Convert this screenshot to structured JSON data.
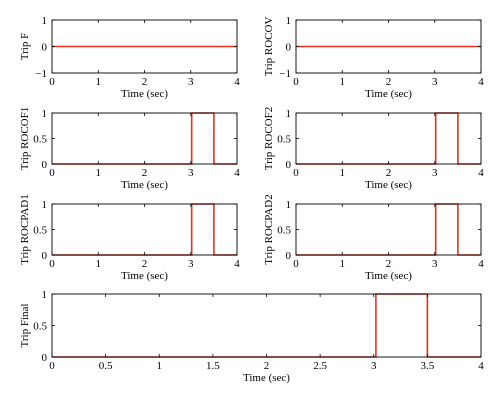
{
  "figure": {
    "background": "#ffffff",
    "line_color": "#e8321e",
    "axis_color": "#000000"
  },
  "chart_data": [
    {
      "type": "line",
      "ylabel": "Trip F",
      "xlabel": "Time (sec)",
      "xlim": [
        0,
        4
      ],
      "ylim": [
        -1,
        1
      ],
      "xticks": [
        "0",
        "1",
        "2",
        "3",
        "4"
      ],
      "yticks": [
        "−1",
        "0",
        "1"
      ],
      "series": [
        {
          "x": [
            0,
            4
          ],
          "y": [
            0,
            0
          ]
        }
      ]
    },
    {
      "type": "line",
      "ylabel": "Trip ROCOV",
      "xlabel": "Time (sec)",
      "xlim": [
        0,
        4
      ],
      "ylim": [
        -1,
        1
      ],
      "xticks": [
        "0",
        "1",
        "2",
        "3",
        "4"
      ],
      "yticks": [
        "−1",
        "0",
        "1"
      ],
      "series": [
        {
          "x": [
            0,
            4
          ],
          "y": [
            0,
            0
          ]
        }
      ]
    },
    {
      "type": "line",
      "ylabel": "Trip ROCOF1",
      "xlabel": "Time (sec)",
      "xlim": [
        0,
        4
      ],
      "ylim": [
        0,
        1
      ],
      "xticks": [
        "0",
        "1",
        "2",
        "3",
        "4"
      ],
      "yticks": [
        "0",
        "0.5",
        "1"
      ],
      "series": [
        {
          "x": [
            0,
            3.02,
            3.02,
            3.5,
            3.5,
            4
          ],
          "y": [
            0,
            0,
            1,
            1,
            0,
            0
          ]
        }
      ]
    },
    {
      "type": "line",
      "ylabel": "Trip ROCOF2",
      "xlabel": "Time (sec)",
      "xlim": [
        0,
        4
      ],
      "ylim": [
        0,
        1
      ],
      "xticks": [
        "0",
        "1",
        "2",
        "3",
        "4"
      ],
      "yticks": [
        "0",
        "0.5",
        "1"
      ],
      "series": [
        {
          "x": [
            0,
            3.02,
            3.02,
            3.5,
            3.5,
            4
          ],
          "y": [
            0,
            0,
            1,
            1,
            0,
            0
          ]
        }
      ]
    },
    {
      "type": "line",
      "ylabel": "Trip ROCPAD1",
      "xlabel": "Time (sec)",
      "xlim": [
        0,
        4
      ],
      "ylim": [
        0,
        1
      ],
      "xticks": [
        "0",
        "1",
        "2",
        "3",
        "4"
      ],
      "yticks": [
        "0",
        "0.5",
        "1"
      ],
      "series": [
        {
          "x": [
            0,
            3.02,
            3.02,
            3.5,
            3.5,
            4
          ],
          "y": [
            0,
            0,
            1,
            1,
            0,
            0
          ]
        }
      ]
    },
    {
      "type": "line",
      "ylabel": "Trip ROCPAD2",
      "xlabel": "Time (sec)",
      "xlim": [
        0,
        4
      ],
      "ylim": [
        0,
        1
      ],
      "xticks": [
        "0",
        "1",
        "2",
        "3",
        "4"
      ],
      "yticks": [
        "0",
        "0.5",
        "1"
      ],
      "series": [
        {
          "x": [
            0,
            3.02,
            3.02,
            3.5,
            3.5,
            4
          ],
          "y": [
            0,
            0,
            1,
            1,
            0,
            0
          ]
        }
      ]
    },
    {
      "type": "line",
      "ylabel": "Trip Final",
      "xlabel": "Time (sec)",
      "xlim": [
        0,
        4
      ],
      "ylim": [
        0,
        1
      ],
      "xticks": [
        "0",
        "0.5",
        "1",
        "1.5",
        "2",
        "2.5",
        "3",
        "3.5",
        "4"
      ],
      "yticks": [
        "0",
        "0.5",
        "1"
      ],
      "series": [
        {
          "x": [
            0,
            3.02,
            3.02,
            3.5,
            3.5,
            4
          ],
          "y": [
            0,
            0,
            1,
            1,
            0,
            0
          ]
        }
      ]
    }
  ]
}
